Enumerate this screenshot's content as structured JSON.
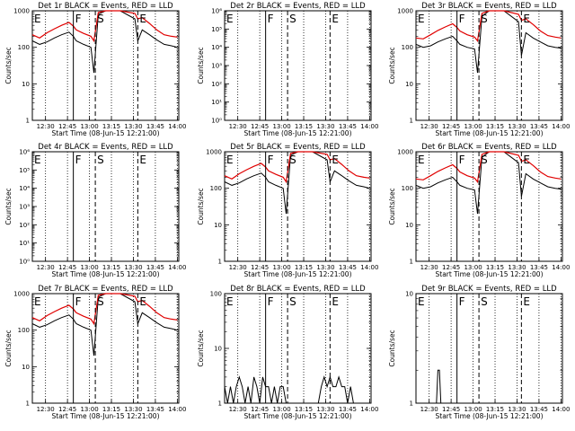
{
  "chart_data": [
    {
      "type": "line",
      "title": "Det 1r BLACK = Events, RED = LLD",
      "xlabel": "Start Time (08-Jun-15 12:21:00)",
      "ylabel": "Counts/sec",
      "yscale": "log",
      "ylim": [
        1,
        1000
      ],
      "ytick_labels": [
        "1",
        "10",
        "100",
        "1000"
      ],
      "x_tick_labels": [
        "12:30",
        "12:45",
        "13:00",
        "13:15",
        "13:30",
        "13:45",
        "14:00"
      ],
      "xlim": [
        "12:21",
        "14:01"
      ],
      "markers": [
        {
          "label": "E",
          "time": "12:21"
        },
        {
          "label": "F",
          "time": "12:49"
        },
        {
          "label": "S",
          "time": "13:04"
        },
        {
          "label": "E",
          "time": "13:33"
        }
      ],
      "series": [
        {
          "name": "Events",
          "color": "#000000",
          "x": [
            "12:21",
            "12:26",
            "12:31",
            "12:36",
            "12:41",
            "12:46",
            "12:49",
            "12:51",
            "12:56",
            "13:01",
            "13:03",
            "13:06",
            "13:11",
            "13:21",
            "13:31",
            "13:33",
            "13:36",
            "13:41",
            "13:46",
            "13:51",
            "13:56",
            "14:00"
          ],
          "y": [
            150,
            120,
            140,
            180,
            220,
            260,
            200,
            150,
            120,
            100,
            20,
            800,
            1000,
            1000,
            600,
            150,
            300,
            220,
            160,
            120,
            110,
            100
          ]
        },
        {
          "name": "LLD",
          "color": "#e00000",
          "x": [
            "12:21",
            "12:26",
            "12:31",
            "12:36",
            "12:41",
            "12:46",
            "12:49",
            "12:51",
            "12:56",
            "13:01",
            "13:03",
            "13:06",
            "13:11",
            "13:21",
            "13:31",
            "13:33",
            "13:36",
            "13:41",
            "13:46",
            "13:51",
            "13:56",
            "14:00"
          ],
          "y": [
            220,
            180,
            250,
            320,
            400,
            480,
            380,
            300,
            240,
            200,
            150,
            900,
            1000,
            1000,
            850,
            600,
            650,
            450,
            300,
            220,
            200,
            190
          ]
        }
      ]
    },
    {
      "type": "line",
      "title": "Det 2r BLACK = Events, RED = LLD",
      "xlabel": "Start Time (08-Jun-15 12:21:00)",
      "ylabel": "Counts/sec",
      "yscale": "log",
      "ylim": [
        1,
        1000000
      ],
      "ytick_labels": [
        "10⁰",
        "10¹",
        "10²",
        "10³",
        "10⁴",
        "10⁵",
        "10⁶"
      ],
      "x_tick_labels": [
        "12:30",
        "12:45",
        "13:00",
        "13:15",
        "13:30",
        "13:45",
        "14:00"
      ],
      "xlim": [
        "12:21",
        "14:01"
      ],
      "markers": [
        {
          "label": "E",
          "time": "12:21"
        },
        {
          "label": "F",
          "time": "12:49"
        },
        {
          "label": "S",
          "time": "13:04"
        },
        {
          "label": "E",
          "time": "13:33"
        }
      ],
      "series": []
    },
    {
      "type": "line",
      "title": "Det 3r BLACK = Events, RED = LLD",
      "xlabel": "Start Time (08-Jun-15 12:21:00)",
      "ylabel": "Counts/sec",
      "yscale": "log",
      "ylim": [
        1,
        1000
      ],
      "ytick_labels": [
        "1",
        "10",
        "100",
        "1000"
      ],
      "x_tick_labels": [
        "12:30",
        "12:45",
        "13:00",
        "13:15",
        "13:30",
        "13:45",
        "14:00"
      ],
      "xlim": [
        "12:21",
        "14:01"
      ],
      "markers": [
        {
          "label": "E",
          "time": "12:21"
        },
        {
          "label": "F",
          "time": "12:49"
        },
        {
          "label": "S",
          "time": "13:04"
        },
        {
          "label": "E",
          "time": "13:33"
        }
      ],
      "series": [
        {
          "name": "Events",
          "color": "#000000",
          "x": [
            "12:21",
            "12:26",
            "12:31",
            "12:36",
            "12:41",
            "12:46",
            "12:49",
            "12:51",
            "12:56",
            "13:01",
            "13:03",
            "13:06",
            "13:11",
            "13:21",
            "13:31",
            "13:33",
            "13:36",
            "13:41",
            "13:46",
            "13:51",
            "13:56",
            "14:00"
          ],
          "y": [
            120,
            100,
            110,
            140,
            170,
            200,
            150,
            120,
            100,
            90,
            20,
            700,
            1000,
            1000,
            500,
            60,
            250,
            180,
            140,
            110,
            100,
            95
          ]
        },
        {
          "name": "LLD",
          "color": "#e00000",
          "x": [
            "12:21",
            "12:26",
            "12:31",
            "12:36",
            "12:41",
            "12:46",
            "12:49",
            "12:51",
            "12:56",
            "13:01",
            "13:03",
            "13:06",
            "13:11",
            "13:21",
            "13:31",
            "13:33",
            "13:36",
            "13:41",
            "13:46",
            "13:51",
            "13:56",
            "14:00"
          ],
          "y": [
            180,
            170,
            220,
            290,
            360,
            440,
            350,
            280,
            220,
            190,
            150,
            850,
            1000,
            1000,
            800,
            550,
            600,
            420,
            280,
            210,
            190,
            180
          ]
        }
      ]
    },
    {
      "type": "line",
      "title": "Det 4r BLACK = Events, RED = LLD",
      "xlabel": "Start Time (08-Jun-15 12:21:00)",
      "ylabel": "Counts/sec",
      "yscale": "log",
      "ylim": [
        1,
        1000000
      ],
      "ytick_labels": [
        "10⁰",
        "10¹",
        "10²",
        "10³",
        "10⁴",
        "10⁵",
        "10⁶"
      ],
      "x_tick_labels": [
        "12:30",
        "12:45",
        "13:00",
        "13:15",
        "13:30",
        "13:45",
        "14:00"
      ],
      "xlim": [
        "12:21",
        "14:01"
      ],
      "markers": [
        {
          "label": "E",
          "time": "12:21"
        },
        {
          "label": "F",
          "time": "12:49"
        },
        {
          "label": "S",
          "time": "13:04"
        },
        {
          "label": "E",
          "time": "13:33"
        }
      ],
      "series": []
    },
    {
      "type": "line",
      "title": "Det 5r BLACK = Events, RED = LLD",
      "xlabel": "Start Time (08-Jun-15 12:21:00)",
      "ylabel": "Counts/sec",
      "yscale": "log",
      "ylim": [
        1,
        1000
      ],
      "ytick_labels": [
        "1",
        "10",
        "100",
        "1000"
      ],
      "x_tick_labels": [
        "12:30",
        "12:45",
        "13:00",
        "13:15",
        "13:30",
        "13:45",
        "14:00"
      ],
      "xlim": [
        "12:21",
        "14:01"
      ],
      "markers": [
        {
          "label": "E",
          "time": "12:21"
        },
        {
          "label": "F",
          "time": "12:49"
        },
        {
          "label": "S",
          "time": "13:04"
        },
        {
          "label": "E",
          "time": "13:33"
        }
      ],
      "series": [
        {
          "name": "Events",
          "color": "#000000",
          "x": [
            "12:21",
            "12:26",
            "12:31",
            "12:36",
            "12:41",
            "12:46",
            "12:49",
            "12:51",
            "12:56",
            "13:01",
            "13:03",
            "13:06",
            "13:11",
            "13:21",
            "13:31",
            "13:33",
            "13:36",
            "13:41",
            "13:46",
            "13:51",
            "13:56",
            "14:00"
          ],
          "y": [
            150,
            120,
            140,
            180,
            220,
            260,
            200,
            150,
            120,
            100,
            20,
            800,
            1000,
            1000,
            600,
            150,
            300,
            220,
            160,
            120,
            110,
            100
          ]
        },
        {
          "name": "LLD",
          "color": "#e00000",
          "x": [
            "12:21",
            "12:26",
            "12:31",
            "12:36",
            "12:41",
            "12:46",
            "12:49",
            "12:51",
            "12:56",
            "13:01",
            "13:03",
            "13:06",
            "13:11",
            "13:21",
            "13:31",
            "13:33",
            "13:36",
            "13:41",
            "13:46",
            "13:51",
            "13:56",
            "14:00"
          ],
          "y": [
            220,
            180,
            250,
            320,
            400,
            480,
            380,
            300,
            240,
            200,
            150,
            900,
            1000,
            1000,
            850,
            600,
            650,
            450,
            300,
            220,
            200,
            190
          ]
        }
      ]
    },
    {
      "type": "line",
      "title": "Det 6r BLACK = Events, RED = LLD",
      "xlabel": "Start Time (08-Jun-15 12:21:00)",
      "ylabel": "Counts/sec",
      "yscale": "log",
      "ylim": [
        1,
        1000
      ],
      "ytick_labels": [
        "1",
        "10",
        "100",
        "1000"
      ],
      "x_tick_labels": [
        "12:30",
        "12:45",
        "13:00",
        "13:15",
        "13:30",
        "13:45",
        "14:00"
      ],
      "xlim": [
        "12:21",
        "14:01"
      ],
      "markers": [
        {
          "label": "E",
          "time": "12:21"
        },
        {
          "label": "F",
          "time": "12:49"
        },
        {
          "label": "S",
          "time": "13:04"
        },
        {
          "label": "E",
          "time": "13:33"
        }
      ],
      "series": [
        {
          "name": "Events",
          "color": "#000000",
          "x": [
            "12:21",
            "12:26",
            "12:31",
            "12:36",
            "12:41",
            "12:46",
            "12:49",
            "12:51",
            "12:56",
            "13:01",
            "13:03",
            "13:06",
            "13:11",
            "13:21",
            "13:31",
            "13:33",
            "13:36",
            "13:41",
            "13:46",
            "13:51",
            "13:56",
            "14:00"
          ],
          "y": [
            120,
            100,
            110,
            140,
            170,
            200,
            150,
            120,
            100,
            90,
            20,
            700,
            1000,
            1000,
            500,
            60,
            250,
            180,
            140,
            110,
            100,
            95
          ]
        },
        {
          "name": "LLD",
          "color": "#e00000",
          "x": [
            "12:21",
            "12:26",
            "12:31",
            "12:36",
            "12:41",
            "12:46",
            "12:49",
            "12:51",
            "12:56",
            "13:01",
            "13:03",
            "13:06",
            "13:11",
            "13:21",
            "13:31",
            "13:33",
            "13:36",
            "13:41",
            "13:46",
            "13:51",
            "13:56",
            "14:00"
          ],
          "y": [
            180,
            170,
            220,
            290,
            360,
            440,
            350,
            280,
            220,
            190,
            150,
            850,
            1000,
            1000,
            800,
            550,
            600,
            420,
            280,
            210,
            190,
            180
          ]
        }
      ]
    },
    {
      "type": "line",
      "title": "Det 7r BLACK = Events, RED = LLD",
      "xlabel": "Start Time (08-Jun-15 12:21:00)",
      "ylabel": "Counts/sec",
      "yscale": "log",
      "ylim": [
        1,
        1000
      ],
      "ytick_labels": [
        "1",
        "10",
        "100",
        "1000"
      ],
      "x_tick_labels": [
        "12:30",
        "12:45",
        "13:00",
        "13:15",
        "13:30",
        "13:45",
        "14:00"
      ],
      "xlim": [
        "12:21",
        "14:01"
      ],
      "markers": [
        {
          "label": "E",
          "time": "12:21"
        },
        {
          "label": "F",
          "time": "12:49"
        },
        {
          "label": "S",
          "time": "13:04"
        },
        {
          "label": "E",
          "time": "13:33"
        }
      ],
      "series": [
        {
          "name": "Events",
          "color": "#000000",
          "x": [
            "12:21",
            "12:26",
            "12:31",
            "12:36",
            "12:41",
            "12:46",
            "12:49",
            "12:51",
            "12:56",
            "13:01",
            "13:03",
            "13:06",
            "13:11",
            "13:21",
            "13:31",
            "13:33",
            "13:36",
            "13:41",
            "13:46",
            "13:51",
            "13:56",
            "14:00"
          ],
          "y": [
            150,
            120,
            140,
            180,
            220,
            260,
            200,
            150,
            120,
            100,
            20,
            800,
            1000,
            1000,
            600,
            150,
            300,
            220,
            160,
            120,
            110,
            100
          ]
        },
        {
          "name": "LLD",
          "color": "#e00000",
          "x": [
            "12:21",
            "12:26",
            "12:31",
            "12:36",
            "12:41",
            "12:46",
            "12:49",
            "12:51",
            "12:56",
            "13:01",
            "13:03",
            "13:06",
            "13:11",
            "13:21",
            "13:31",
            "13:33",
            "13:36",
            "13:41",
            "13:46",
            "13:51",
            "13:56",
            "14:00"
          ],
          "y": [
            220,
            180,
            250,
            320,
            400,
            480,
            380,
            300,
            240,
            200,
            150,
            900,
            1000,
            1000,
            850,
            600,
            650,
            450,
            300,
            220,
            200,
            190
          ]
        }
      ]
    },
    {
      "type": "line",
      "title": "Det 8r BLACK = Events, RED = LLD",
      "xlabel": "Start Time (08-Jun-15 12:21:00)",
      "ylabel": "Counts/sec",
      "yscale": "log",
      "ylim": [
        1,
        100
      ],
      "ytick_labels": [
        "1",
        "10",
        "100"
      ],
      "x_tick_labels": [
        "12:30",
        "12:45",
        "13:00",
        "13:15",
        "13:30",
        "13:45",
        "14:00"
      ],
      "xlim": [
        "12:21",
        "14:01"
      ],
      "markers": [
        {
          "label": "E",
          "time": "12:21"
        },
        {
          "label": "F",
          "time": "12:49"
        },
        {
          "label": "S",
          "time": "13:04"
        },
        {
          "label": "E",
          "time": "13:33"
        }
      ],
      "series": [
        {
          "name": "Events",
          "color": "#000000",
          "x": [
            "12:21",
            "12:23",
            "12:25",
            "12:27",
            "12:29",
            "12:31",
            "12:33",
            "12:35",
            "12:37",
            "12:39",
            "12:41",
            "12:43",
            "12:45",
            "12:47",
            "12:49",
            "12:51",
            "12:53",
            "12:55",
            "12:57",
            "12:59",
            "13:01",
            "13:03",
            "13:05",
            "13:07",
            "13:25",
            "13:27",
            "13:29",
            "13:31",
            "13:33",
            "13:35",
            "13:37",
            "13:39",
            "13:41",
            "13:43",
            "13:45",
            "13:47",
            "13:49",
            "13:51",
            "13:53"
          ],
          "y": [
            2,
            1,
            2,
            1,
            2,
            3,
            2,
            1,
            2,
            1,
            3,
            2,
            1,
            3,
            2,
            2,
            1,
            2,
            1,
            2,
            2,
            1,
            1,
            1,
            1,
            2,
            3,
            2,
            3,
            2,
            2,
            3,
            2,
            2,
            1,
            2,
            1,
            1,
            1
          ]
        }
      ]
    },
    {
      "type": "line",
      "title": "Det 9r BLACK = Events, RED = LLD",
      "xlabel": "Start Time (08-Jun-15 12:21:00)",
      "ylabel": "Counts/sec",
      "yscale": "log",
      "ylim": [
        1,
        10
      ],
      "ytick_labels": [
        "1",
        "10"
      ],
      "x_tick_labels": [
        "12:30",
        "12:45",
        "13:00",
        "13:15",
        "13:30",
        "13:45",
        "14:00"
      ],
      "xlim": [
        "12:21",
        "14:01"
      ],
      "markers": [
        {
          "label": "E",
          "time": "12:21"
        },
        {
          "label": "F",
          "time": "12:49"
        },
        {
          "label": "S",
          "time": "13:04"
        },
        {
          "label": "E",
          "time": "13:33"
        }
      ],
      "series": [
        {
          "name": "Events",
          "color": "#000000",
          "x": [
            "12:21",
            "12:35",
            "12:36",
            "12:37",
            "12:38",
            "14:00"
          ],
          "y": [
            1,
            1,
            2,
            2,
            1,
            1
          ]
        }
      ]
    }
  ]
}
